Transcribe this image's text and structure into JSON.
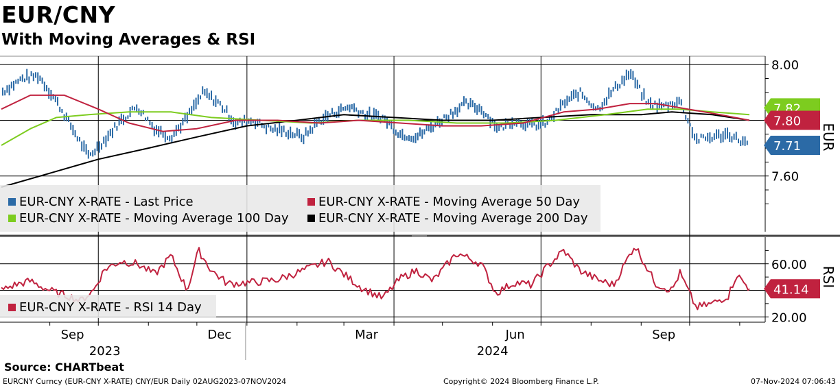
{
  "header": {
    "title": "EUR/CNY",
    "subtitle": "With Moving Averages & RSI"
  },
  "footer": {
    "source": "Source: CHARTbeat",
    "ticker": "EURCNY Curncy (EUR-CNY X-RATE) CNY/EUR  Daily 02AUG2023-07NOV2024",
    "copyright": "Copyright© 2024 Bloomberg Finance L.P.",
    "timestamp": "07-Nov-2024 07:06:43"
  },
  "colors": {
    "price": "#2b6aa6",
    "ma50": "#c0223f",
    "ma100": "#7dcc1f",
    "ma200": "#000000",
    "rsi": "#c0223f",
    "grid": "#000000",
    "legend_bg": "#e8e8e8"
  },
  "chart_data": [
    {
      "type": "ohlc",
      "title": "",
      "y_axis_label": "EUR",
      "y_axis_side": "right",
      "y_ticks": [
        7.6,
        8.0
      ],
      "y_tick_labels": [
        "7.60",
        "8.00"
      ],
      "ylim": [
        7.4,
        8.03
      ],
      "grid": true,
      "legend_placement": "bottom-left",
      "last_value_labels": [
        {
          "series": "EUR-CNY X-RATE - Moving Average 100 Day",
          "value": 7.82,
          "text": "7.82"
        },
        {
          "series": "EUR-CNY X-RATE - Moving Average 50 Day",
          "value": 7.8,
          "text": "7.80"
        },
        {
          "series": "EUR-CNY X-RATE - Last Price",
          "value": 7.71,
          "text": "7.71"
        }
      ],
      "series": [
        {
          "name": "EUR-CNY X-RATE - Last Price",
          "style": "bars",
          "x": [
            "2023-08-02",
            "2023-08-15",
            "2023-08-25",
            "2023-09-05",
            "2023-09-15",
            "2023-09-25",
            "2023-10-05",
            "2023-10-15",
            "2023-10-25",
            "2023-11-05",
            "2023-11-15",
            "2023-11-25",
            "2023-12-05",
            "2023-12-15",
            "2023-12-25",
            "2024-01-05",
            "2024-01-15",
            "2024-01-25",
            "2024-02-05",
            "2024-02-15",
            "2024-02-25",
            "2024-03-05",
            "2024-03-15",
            "2024-03-25",
            "2024-04-05",
            "2024-04-15",
            "2024-04-25",
            "2024-05-05",
            "2024-05-15",
            "2024-05-25",
            "2024-06-05",
            "2024-06-15",
            "2024-06-25",
            "2024-07-05",
            "2024-07-15",
            "2024-07-25",
            "2024-08-05",
            "2024-08-15",
            "2024-08-25",
            "2024-09-05",
            "2024-09-15",
            "2024-09-25",
            "2024-10-05",
            "2024-10-15",
            "2024-10-25",
            "2024-11-07"
          ],
          "values": [
            7.9,
            7.95,
            7.96,
            7.87,
            7.77,
            7.67,
            7.73,
            7.8,
            7.85,
            7.77,
            7.74,
            7.81,
            7.9,
            7.86,
            7.79,
            7.8,
            7.77,
            7.76,
            7.74,
            7.8,
            7.83,
            7.85,
            7.82,
            7.81,
            7.75,
            7.74,
            7.78,
            7.82,
            7.86,
            7.84,
            7.77,
            7.8,
            7.78,
            7.79,
            7.86,
            7.9,
            7.84,
            7.91,
            7.97,
            7.86,
            7.85,
            7.87,
            7.73,
            7.74,
            7.75,
            7.71
          ]
        },
        {
          "name": "EUR-CNY X-RATE - Moving Average 50 Day",
          "style": "line",
          "x": [
            "2023-08-02",
            "2023-08-20",
            "2023-09-10",
            "2023-10-01",
            "2023-10-20",
            "2023-11-10",
            "2023-12-01",
            "2023-12-25",
            "2024-01-20",
            "2024-02-15",
            "2024-03-10",
            "2024-04-05",
            "2024-05-01",
            "2024-05-25",
            "2024-06-20",
            "2024-07-15",
            "2024-08-05",
            "2024-08-25",
            "2024-09-10",
            "2024-09-30",
            "2024-10-20",
            "2024-11-07"
          ],
          "values": [
            7.84,
            7.89,
            7.89,
            7.84,
            7.79,
            7.76,
            7.77,
            7.8,
            7.8,
            7.79,
            7.8,
            7.79,
            7.78,
            7.78,
            7.79,
            7.83,
            7.84,
            7.86,
            7.86,
            7.84,
            7.82,
            7.8
          ]
        },
        {
          "name": "EUR-CNY X-RATE - Moving Average 100 Day",
          "style": "line",
          "x": [
            "2023-08-02",
            "2023-08-20",
            "2023-09-05",
            "2023-09-25",
            "2023-10-20",
            "2023-11-15",
            "2023-12-10",
            "2024-01-10",
            "2024-02-10",
            "2024-03-10",
            "2024-04-10",
            "2024-05-10",
            "2024-06-10",
            "2024-07-10",
            "2024-08-10",
            "2024-09-05",
            "2024-09-25",
            "2024-10-15",
            "2024-11-07"
          ],
          "values": [
            7.71,
            7.77,
            7.81,
            7.82,
            7.83,
            7.83,
            7.81,
            7.8,
            7.79,
            7.8,
            7.8,
            7.79,
            7.79,
            7.8,
            7.82,
            7.84,
            7.84,
            7.83,
            7.82
          ]
        },
        {
          "name": "EUR-CNY X-RATE - Moving Average 200 Day",
          "style": "line",
          "x": [
            "2023-08-02",
            "2023-09-01",
            "2023-10-01",
            "2023-11-01",
            "2023-12-01",
            "2024-01-01",
            "2024-02-01",
            "2024-03-01",
            "2024-04-01",
            "2024-05-01",
            "2024-06-01",
            "2024-07-01",
            "2024-08-01",
            "2024-09-01",
            "2024-09-20",
            "2024-10-15",
            "2024-11-07"
          ],
          "values": [
            7.56,
            7.61,
            7.66,
            7.7,
            7.74,
            7.78,
            7.8,
            7.82,
            7.81,
            7.8,
            7.8,
            7.81,
            7.82,
            7.82,
            7.83,
            7.82,
            7.8
          ]
        }
      ]
    },
    {
      "type": "line",
      "title": "",
      "y_axis_label": "RSI",
      "y_axis_side": "right",
      "y_ticks": [
        20,
        40,
        60
      ],
      "y_tick_labels": [
        "20.00",
        "",
        "60.00"
      ],
      "ylim": [
        16,
        80
      ],
      "grid": true,
      "legend_placement": "bottom-left",
      "last_value_labels": [
        {
          "series": "EUR-CNY X-RATE - RSI 14 Day",
          "value": 41.14,
          "text": "41.14"
        }
      ],
      "series": [
        {
          "name": "EUR-CNY X-RATE - RSI 14 Day",
          "x": [
            "2023-08-02",
            "2023-08-10",
            "2023-08-20",
            "2023-08-28",
            "2023-09-05",
            "2023-09-12",
            "2023-09-20",
            "2023-09-28",
            "2023-10-05",
            "2023-10-15",
            "2023-10-25",
            "2023-11-05",
            "2023-11-15",
            "2023-11-25",
            "2023-12-02",
            "2023-12-10",
            "2023-12-20",
            "2024-01-05",
            "2024-01-20",
            "2024-02-05",
            "2024-02-20",
            "2024-03-01",
            "2024-03-12",
            "2024-03-25",
            "2024-04-05",
            "2024-04-15",
            "2024-04-25",
            "2024-05-10",
            "2024-05-25",
            "2024-06-03",
            "2024-06-15",
            "2024-06-25",
            "2024-07-05",
            "2024-07-15",
            "2024-07-25",
            "2024-08-05",
            "2024-08-15",
            "2024-08-28",
            "2024-09-10",
            "2024-09-20",
            "2024-09-25",
            "2024-10-05",
            "2024-10-15",
            "2024-10-25",
            "2024-10-30",
            "2024-11-07"
          ],
          "values": [
            40,
            44,
            47,
            42,
            38,
            36,
            32,
            40,
            56,
            62,
            60,
            52,
            66,
            40,
            70,
            55,
            45,
            46,
            48,
            55,
            62,
            52,
            42,
            34,
            49,
            55,
            47,
            68,
            60,
            38,
            46,
            44,
            58,
            70,
            55,
            48,
            44,
            74,
            45,
            40,
            53,
            27,
            30,
            36,
            52,
            41.14
          ]
        }
      ]
    }
  ],
  "x_axis": {
    "month_labels": [
      {
        "date": "2023-09-15",
        "text": "Sep"
      },
      {
        "date": "2023-12-15",
        "text": "Dec"
      },
      {
        "date": "2024-03-15",
        "text": "Mar"
      },
      {
        "date": "2024-06-15",
        "text": "Jun"
      },
      {
        "date": "2024-09-15",
        "text": "Sep"
      }
    ],
    "year_labels": [
      {
        "date": "2023-10-05",
        "text": "2023"
      },
      {
        "date": "2024-06-01",
        "text": "2024"
      }
    ],
    "quarter_gridlines": [
      "2023-10-01",
      "2024-01-01",
      "2024-04-01",
      "2024-07-01",
      "2024-10-01"
    ],
    "year_divider": "2024-01-01"
  },
  "legends": {
    "price_panel": [
      {
        "label": "EUR-CNY X-RATE - Last Price",
        "color": "#2b6aa6"
      },
      {
        "label": "EUR-CNY X-RATE - Moving Average 50 Day",
        "color": "#c0223f"
      },
      {
        "label": "EUR-CNY X-RATE - Moving Average 100 Day",
        "color": "#7dcc1f"
      },
      {
        "label": "EUR-CNY X-RATE - Moving Average 200 Day",
        "color": "#000000"
      }
    ],
    "rsi_panel": [
      {
        "label": "EUR-CNY X-RATE - RSI 14 Day",
        "color": "#c0223f"
      }
    ]
  }
}
